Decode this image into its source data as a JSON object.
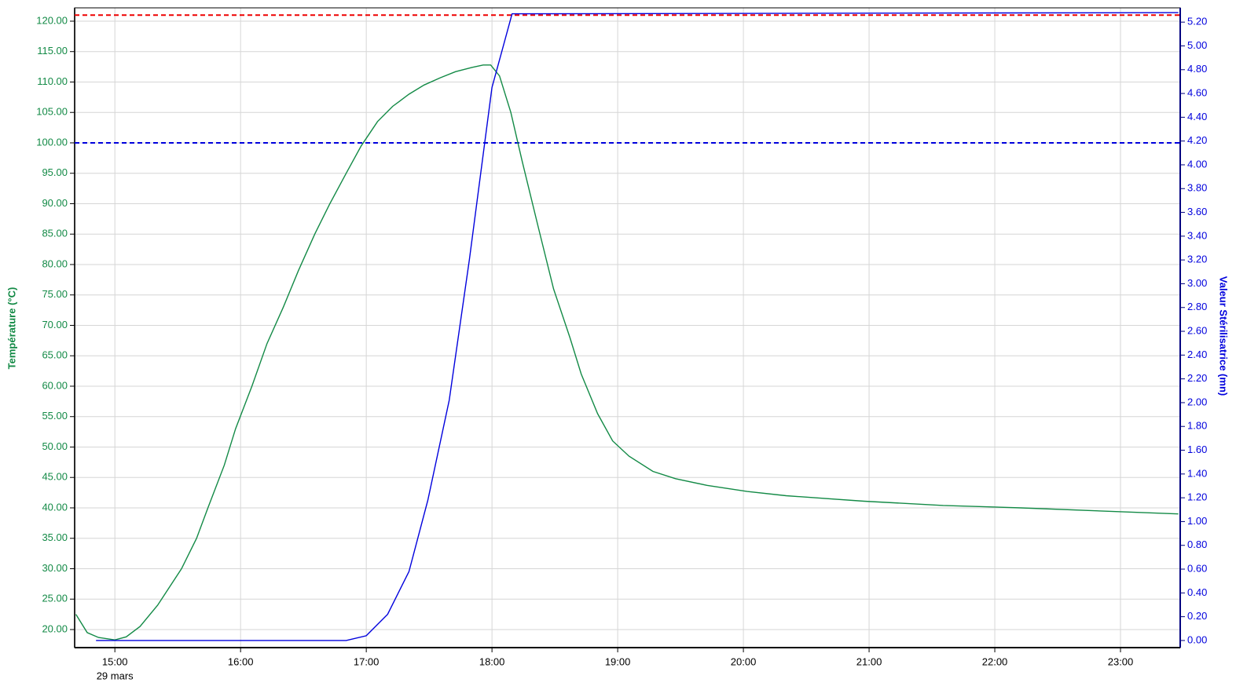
{
  "chart_data": {
    "type": "line",
    "y_label": "Température (°C)",
    "y2_label": "Valeur Stérilisatrice (mn)",
    "x_sublabel": "29 mars",
    "grid": true,
    "xlim": [
      14.68,
      23.475
    ],
    "xticks": [
      {
        "value": 15,
        "label": "15:00"
      },
      {
        "value": 16,
        "label": "16:00"
      },
      {
        "value": 17,
        "label": "17:00"
      },
      {
        "value": 18,
        "label": "18:00"
      },
      {
        "value": 19,
        "label": "19:00"
      },
      {
        "value": 20,
        "label": "20:00"
      },
      {
        "value": 21,
        "label": "21:00"
      },
      {
        "value": 22,
        "label": "22:00"
      },
      {
        "value": 23,
        "label": "23:00"
      }
    ],
    "ylim": [
      17.03,
      122.19
    ],
    "yticks": [
      {
        "value": 20,
        "label": "20.00"
      },
      {
        "value": 25,
        "label": "25.00"
      },
      {
        "value": 30,
        "label": "30.00"
      },
      {
        "value": 35,
        "label": "35.00"
      },
      {
        "value": 40,
        "label": "40.00"
      },
      {
        "value": 45,
        "label": "45.00"
      },
      {
        "value": 50,
        "label": "50.00"
      },
      {
        "value": 55,
        "label": "55.00"
      },
      {
        "value": 60,
        "label": "60.00"
      },
      {
        "value": 65,
        "label": "65.00"
      },
      {
        "value": 70,
        "label": "70.00"
      },
      {
        "value": 75,
        "label": "75.00"
      },
      {
        "value": 80,
        "label": "80.00"
      },
      {
        "value": 85,
        "label": "85.00"
      },
      {
        "value": 90,
        "label": "90.00"
      },
      {
        "value": 95,
        "label": "95.00"
      },
      {
        "value": 100,
        "label": "100.00"
      },
      {
        "value": 105,
        "label": "105.00"
      },
      {
        "value": 110,
        "label": "110.00"
      },
      {
        "value": 115,
        "label": "115.00"
      },
      {
        "value": 120,
        "label": "120.00"
      }
    ],
    "y2lim": [
      -0.06,
      5.32
    ],
    "y2ticks": [
      {
        "value": 0,
        "label": "0.00"
      },
      {
        "value": 0.2,
        "label": "0.20"
      },
      {
        "value": 0.4,
        "label": "0.40"
      },
      {
        "value": 0.6,
        "label": "0.60"
      },
      {
        "value": 0.8,
        "label": "0.80"
      },
      {
        "value": 1,
        "label": "1.00"
      },
      {
        "value": 1.2,
        "label": "1.20"
      },
      {
        "value": 1.4,
        "label": "1.40"
      },
      {
        "value": 1.6,
        "label": "1.60"
      },
      {
        "value": 1.8,
        "label": "1.80"
      },
      {
        "value": 2,
        "label": "2.00"
      },
      {
        "value": 2.2,
        "label": "2.20"
      },
      {
        "value": 2.4,
        "label": "2.40"
      },
      {
        "value": 2.6,
        "label": "2.60"
      },
      {
        "value": 2.8,
        "label": "2.80"
      },
      {
        "value": 3,
        "label": "3.00"
      },
      {
        "value": 3.2,
        "label": "3.20"
      },
      {
        "value": 3.4,
        "label": "3.40"
      },
      {
        "value": 3.6,
        "label": "3.60"
      },
      {
        "value": 3.8,
        "label": "3.80"
      },
      {
        "value": 4,
        "label": "4.00"
      },
      {
        "value": 4.2,
        "label": "4.20"
      },
      {
        "value": 4.4,
        "label": "4.40"
      },
      {
        "value": 4.6,
        "label": "4.60"
      },
      {
        "value": 4.8,
        "label": "4.80"
      },
      {
        "value": 5,
        "label": "5.00"
      },
      {
        "value": 5.2,
        "label": "5.20"
      }
    ],
    "y_color": "#138a46",
    "y2_color": "#0000dd",
    "hlines": [
      {
        "value": 121,
        "color": "#ee0000"
      },
      {
        "value": 100,
        "color": "#0000dd"
      }
    ],
    "series": [
      {
        "color": "#138a46",
        "axis": "y",
        "x": [
          14.69,
          14.78,
          14.87,
          15.0,
          15.09,
          15.2,
          15.34,
          15.53,
          15.65,
          15.74,
          15.87,
          15.96,
          16.09,
          16.21,
          16.34,
          16.46,
          16.59,
          16.71,
          16.84,
          16.96,
          17.09,
          17.21,
          17.34,
          17.46,
          17.59,
          17.71,
          17.84,
          17.93,
          17.99,
          18.06,
          18.15,
          18.24,
          18.37,
          18.49,
          18.62,
          18.71,
          18.84,
          18.96,
          19.09,
          19.28,
          19.46,
          19.71,
          20.03,
          20.34,
          20.96,
          21.59,
          22.21,
          22.84,
          23.46
        ],
        "values": [
          22.5,
          19.5,
          18.7,
          18.3,
          18.8,
          20.5,
          24,
          30,
          35,
          40,
          47,
          53,
          60,
          67,
          73,
          79,
          85,
          90,
          95,
          99.5,
          103.5,
          106,
          108,
          109.5,
          110.7,
          111.7,
          112.4,
          112.8,
          112.8,
          111,
          105,
          97,
          86,
          76,
          68,
          62,
          55.5,
          51,
          48.5,
          46,
          44.8,
          43.7,
          42.7,
          42,
          41.1,
          40.4,
          40,
          39.5,
          39
        ]
      },
      {
        "color": "#0000dd",
        "axis": "y2",
        "x": [
          14.85,
          16.84,
          17.0,
          17.17,
          17.34,
          17.49,
          17.66,
          17.82,
          18.0,
          18.16,
          23.46
        ],
        "values": [
          0,
          0,
          0.04,
          0.22,
          0.58,
          1.18,
          2.02,
          3.2,
          4.65,
          5.27,
          5.28
        ]
      }
    ]
  }
}
